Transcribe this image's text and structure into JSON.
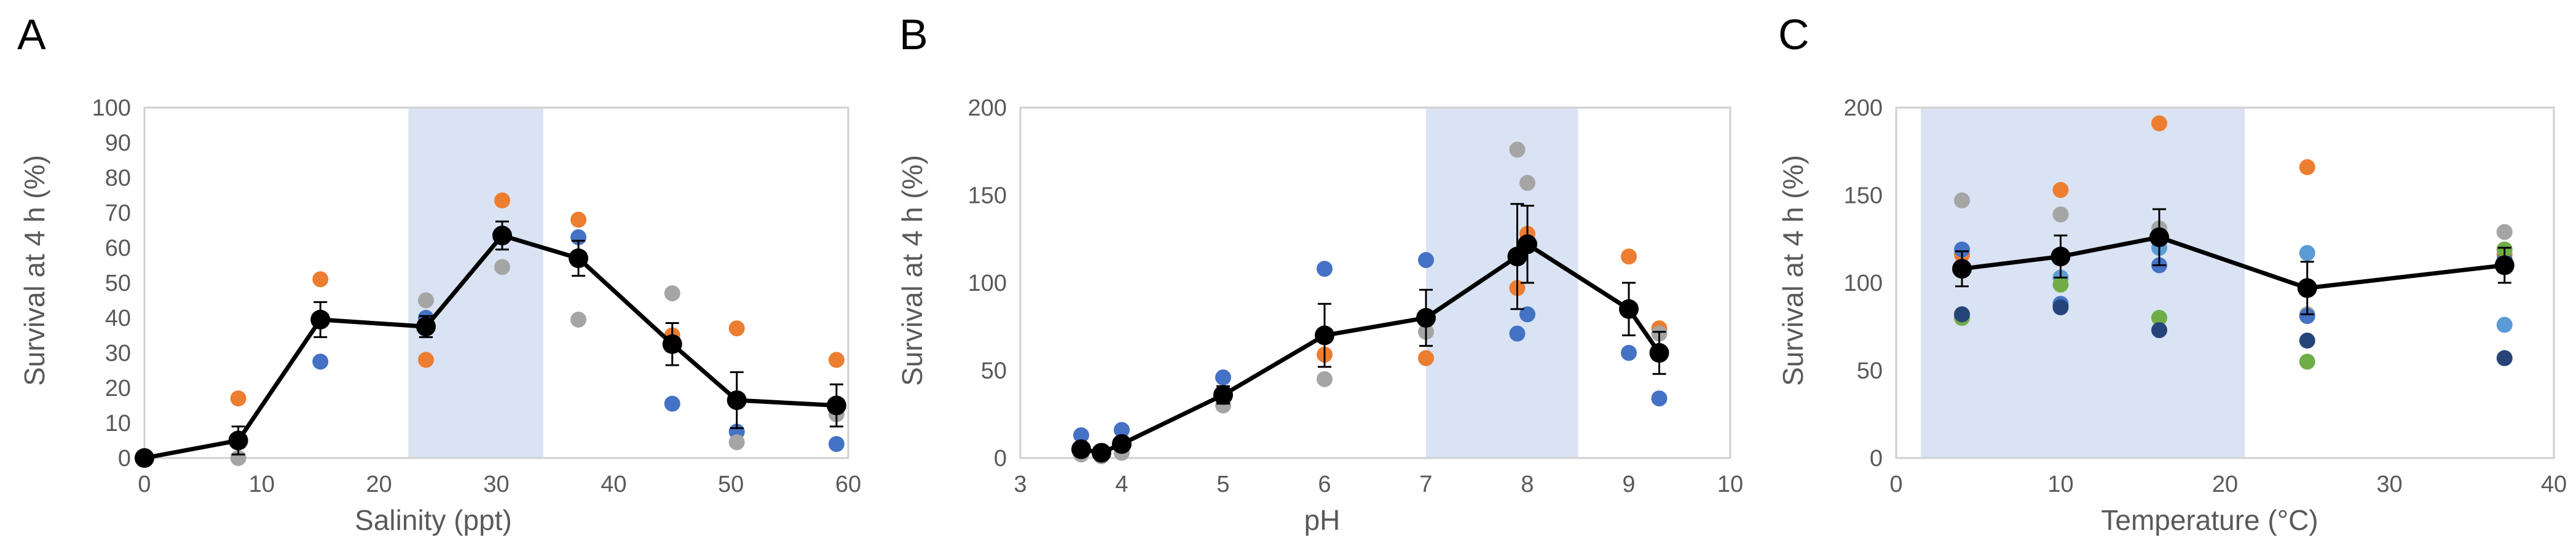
{
  "chart_data": [
    {
      "type": "scatter",
      "panel": "A",
      "title": "",
      "xlabel": "Salinity (ppt)",
      "ylabel": "Survival at 4 h (%)",
      "xlim": [
        0,
        60
      ],
      "ylim": [
        0,
        100
      ],
      "xticks": [
        0,
        10,
        20,
        30,
        40,
        50,
        60
      ],
      "yticks": [
        0,
        10,
        20,
        30,
        40,
        50,
        60,
        70,
        80,
        90,
        100
      ],
      "grid": false,
      "legend": "none",
      "shaded_x": [
        22.5,
        34
      ],
      "shade_color": "#dae3f3",
      "mean_color": "#000000",
      "mean": {
        "x": [
          0,
          8,
          15,
          24,
          30.5,
          37,
          45,
          50.5,
          59
        ],
        "y": [
          0,
          5,
          39.5,
          37.5,
          63.5,
          57,
          32.5,
          16.5,
          15
        ],
        "err": [
          0,
          4,
          5,
          3,
          4,
          5,
          6,
          8,
          6
        ]
      },
      "points": [
        {
          "color": "#ed7d31",
          "x": [
            8,
            15,
            24,
            30.5,
            37,
            45,
            50.5,
            59
          ],
          "y": [
            17,
            51,
            28,
            73.5,
            68,
            35,
            37,
            28
          ]
        },
        {
          "color": "#4472c4",
          "x": [
            15,
            24,
            37,
            45,
            50.5,
            59
          ],
          "y": [
            27.5,
            40,
            63,
            15.5,
            7.5,
            4
          ]
        },
        {
          "color": "#a5a5a5",
          "x": [
            8,
            24,
            30.5,
            37,
            45,
            50.5,
            59
          ],
          "y": [
            0,
            45,
            54.5,
            39.5,
            47,
            4.5,
            12.5
          ]
        }
      ]
    },
    {
      "type": "scatter",
      "panel": "B",
      "title": "",
      "xlabel": "pH",
      "ylabel": "Survival at 4 h (%)",
      "xlim": [
        3,
        10
      ],
      "ylim": [
        0,
        200
      ],
      "xticks": [
        3,
        4,
        5,
        6,
        7,
        8,
        9,
        10
      ],
      "yticks": [
        0,
        50,
        100,
        150,
        200
      ],
      "grid": false,
      "legend": "none",
      "shaded_x": [
        7,
        8.5
      ],
      "shade_color": "#dae3f3",
      "mean_color": "#000000",
      "mean": {
        "x": [
          3.6,
          3.8,
          4,
          5,
          6,
          7,
          7.9,
          8,
          9,
          9.3
        ],
        "y": [
          5,
          3,
          8,
          36,
          70,
          80,
          115,
          122,
          85,
          60
        ],
        "err": [
          2,
          2,
          3,
          5,
          18,
          16,
          30,
          22,
          15,
          12
        ]
      },
      "points": [
        {
          "color": "#ed7d31",
          "x": [
            6,
            7,
            7.9,
            8,
            9,
            9.3
          ],
          "y": [
            59,
            57,
            97,
            128,
            115,
            74
          ]
        },
        {
          "color": "#4472c4",
          "x": [
            3.6,
            4,
            5,
            6,
            7,
            7.9,
            8,
            9,
            9.3
          ],
          "y": [
            13,
            16,
            46,
            108,
            113,
            71,
            82,
            60,
            34
          ]
        },
        {
          "color": "#a5a5a5",
          "x": [
            3.6,
            3.8,
            4,
            5,
            6,
            7,
            7.9,
            8,
            9.3
          ],
          "y": [
            2,
            1,
            3,
            30,
            45,
            72,
            176,
            157,
            71
          ]
        }
      ]
    },
    {
      "type": "scatter",
      "panel": "C",
      "title": "",
      "xlabel": "Temperature (°C)",
      "ylabel": "Survival at 4 h (%)",
      "xlim": [
        0,
        40
      ],
      "ylim": [
        0,
        200
      ],
      "xticks": [
        0,
        10,
        20,
        30,
        40
      ],
      "yticks": [
        0,
        50,
        100,
        150,
        200
      ],
      "grid": false,
      "legend": "none",
      "shaded_x": [
        1.5,
        21.2
      ],
      "shade_color": "#dae3f3",
      "mean_color": "#000000",
      "mean": {
        "x": [
          4,
          10,
          16,
          25,
          37
        ],
        "y": [
          108,
          115,
          126,
          97,
          110
        ],
        "err": [
          10,
          12,
          16,
          15,
          10
        ]
      },
      "points": [
        {
          "color": "#a5a5a5",
          "x": [
            4,
            10,
            16,
            25,
            37
          ],
          "y": [
            147,
            139,
            131,
            82,
            129
          ]
        },
        {
          "color": "#ed7d31",
          "x": [
            4,
            10,
            16,
            25,
            37
          ],
          "y": [
            116,
            153,
            191,
            166,
            116
          ]
        },
        {
          "color": "#4472c4",
          "x": [
            4,
            10,
            16,
            25,
            37
          ],
          "y": [
            119,
            88,
            110,
            81,
            113
          ]
        },
        {
          "color": "#5b9bd5",
          "x": [
            4,
            10,
            16,
            25,
            37
          ],
          "y": [
            80,
            103,
            120,
            117,
            76
          ]
        },
        {
          "color": "#70ad47",
          "x": [
            4,
            10,
            16,
            25,
            37
          ],
          "y": [
            80,
            99,
            80,
            55,
            119
          ]
        },
        {
          "color": "#264478",
          "x": [
            4,
            10,
            16,
            25,
            37
          ],
          "y": [
            82,
            86,
            73,
            67,
            57
          ]
        }
      ]
    }
  ]
}
